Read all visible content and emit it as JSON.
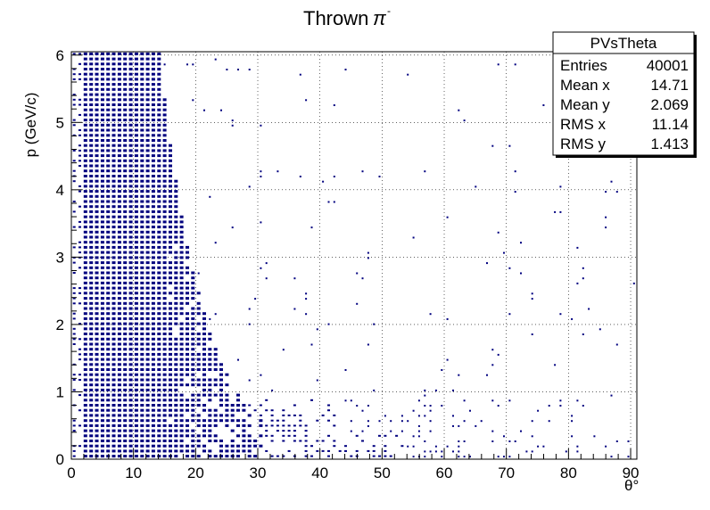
{
  "chart_data": {
    "type": "scatter",
    "title": "Thrown",
    "title_symbol": "π",
    "title_superscript": "-",
    "xlabel": "θ°",
    "ylabel": "p (GeV/c)",
    "xlim": [
      0,
      91
    ],
    "ylim": [
      0,
      6.05
    ],
    "x_ticks": [
      0,
      10,
      20,
      30,
      40,
      50,
      60,
      70,
      80,
      90
    ],
    "y_ticks": [
      0,
      1,
      2,
      3,
      4,
      5,
      6
    ],
    "grid": true,
    "marker_color": "#00007f",
    "stats_box": {
      "title": "PVsTheta",
      "rows": [
        {
          "label": "Entries",
          "value": "40001"
        },
        {
          "label": "Mean x",
          "value": "14.71"
        },
        {
          "label": "Mean y",
          "value": "2.069"
        },
        {
          "label": "RMS x",
          "value": "11.14"
        },
        {
          "label": "RMS y",
          "value": "1.413"
        }
      ]
    },
    "density_description": "2D histogram: dense band at theta 0-20 deg spanning p 0-6, falling with theta; sparse points beyond 30 deg concentrated at low p"
  }
}
